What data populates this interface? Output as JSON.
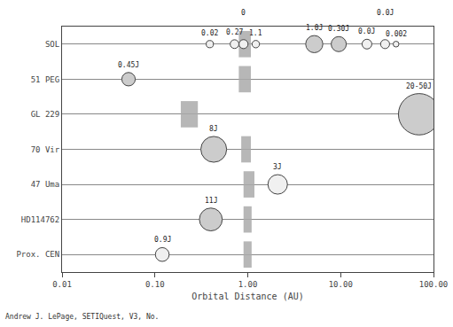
{
  "chart_data": {
    "type": "scatter",
    "xlabel": "Orbital Distance (AU)",
    "annotations": [
      "Andrew J. LePage, SETIQuest, V3, No."
    ],
    "log": "x",
    "grid": "y",
    "xlim": [
      0.01,
      100.0
    ],
    "xticks": [
      0.01,
      {
        "value": 0.1,
        "label": "0.10"
      },
      {
        "value": 1.0,
        "label": "1.00"
      },
      {
        "value": 10.0,
        "label": "10.00"
      },
      {
        "value": 100.0,
        "label": "100.00"
      }
    ],
    "categories": [
      "SOL",
      "51 PEG",
      "GL 229",
      "70 Vir",
      "47 Uma",
      "HD114762",
      "Prox. CEN"
    ],
    "marker": "circle",
    "x": [
      0.39,
      0.72,
      0.9,
      1.22,
      5.2,
      9.54,
      19.2,
      30.1,
      39.5,
      0.052,
      70.0,
      0.43,
      2.1,
      0.4,
      0.12
    ],
    "y": [
      "SOL",
      "SOL",
      "SOL",
      "SOL",
      "SOL",
      "SOL",
      "SOL",
      "SOL",
      "SOL",
      "51 PEG",
      "GL 229",
      "70 Vir",
      "47 Uma",
      "HD114762",
      "Prox. CEN"
    ],
    "sizes": [
      55,
      80,
      85,
      58,
      310,
      240,
      100,
      85,
      35,
      190,
      1800,
      700,
      400,
      550,
      200
    ],
    "labels": [
      "0.02",
      "0.27",
      "0",
      "1.1",
      "1.0J",
      "0.30J",
      "0.0J",
      "0.0J",
      "0.002",
      "0.45J",
      "20-50J",
      "8J",
      "3J",
      "11J",
      "0.9J"
    ],
    "colors": [
      "#f0f0f0",
      "#f0f0f0",
      "#f0f0f0",
      "#f0f0f0",
      "#cccccc",
      "#cccccc",
      "#f0f0f0",
      "#f0f0f0",
      "#f0f0f0",
      "#cccccc",
      "#cccccc",
      "#cccccc",
      "#f0f0f0",
      "#cccccc",
      "#f0f0f0"
    ],
    "habitable_zones": {
      "color": "#aaaaaa",
      "ranges": [
        {
          "category": "SOL",
          "x_min": 0.8,
          "x_max": 1.08
        },
        {
          "category": "51 PEG",
          "x_min": 0.8,
          "x_max": 1.08
        },
        {
          "category": "GL 229",
          "x_min": 0.19,
          "x_max": 0.29
        },
        {
          "category": "70 Vir",
          "x_min": 0.85,
          "x_max": 1.08
        },
        {
          "category": "47 Uma",
          "x_min": 0.9,
          "x_max": 1.18
        },
        {
          "category": "HD114762",
          "x_min": 0.9,
          "x_max": 1.1
        },
        {
          "category": "Prox. CEN",
          "x_min": 0.9,
          "x_max": 1.1
        }
      ]
    }
  }
}
